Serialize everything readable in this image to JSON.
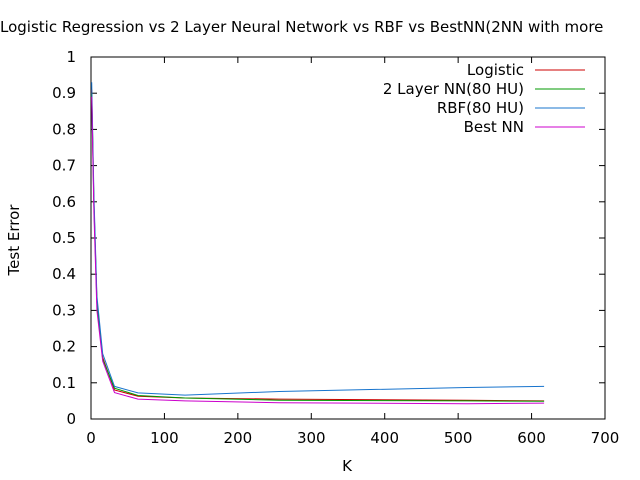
{
  "chart_data": {
    "type": "line",
    "title": "Logistic Regression vs 2 Layer Neural Network vs RBF vs BestNN(2NN with more",
    "xlabel": "K",
    "ylabel": "Test Error",
    "xlim": [
      0,
      700
    ],
    "ylim": [
      0,
      1
    ],
    "xticks": [
      0,
      100,
      200,
      300,
      400,
      500,
      600,
      700
    ],
    "xtick_labels": [
      "0",
      "100",
      "200",
      "300",
      "400",
      "500",
      "600",
      "700"
    ],
    "yticks": [
      0,
      0.1,
      0.2,
      0.3,
      0.4,
      0.5,
      0.6,
      0.7,
      0.8,
      0.9,
      1
    ],
    "ytick_labels": [
      "0",
      "0.1",
      "0.2",
      "0.3",
      "0.4",
      "0.5",
      "0.6",
      "0.7",
      "0.8",
      "0.9",
      "1"
    ],
    "grid": false,
    "legend_position": "top-right",
    "series": [
      {
        "name": "Logistic",
        "color": "#cc0000",
        "points": [
          [
            1,
            0.91
          ],
          [
            4,
            0.6
          ],
          [
            8,
            0.33
          ],
          [
            16,
            0.17
          ],
          [
            32,
            0.08
          ],
          [
            64,
            0.063
          ],
          [
            128,
            0.058
          ],
          [
            256,
            0.055
          ],
          [
            512,
            0.052
          ],
          [
            617,
            0.05
          ]
        ]
      },
      {
        "name": "2 Layer NN(80 HU)",
        "color": "#009900",
        "points": [
          [
            1,
            0.9
          ],
          [
            4,
            0.59
          ],
          [
            8,
            0.32
          ],
          [
            16,
            0.165
          ],
          [
            32,
            0.085
          ],
          [
            64,
            0.065
          ],
          [
            128,
            0.058
          ],
          [
            256,
            0.052
          ],
          [
            512,
            0.05
          ],
          [
            617,
            0.049
          ]
        ]
      },
      {
        "name": "RBF(80 HU)",
        "color": "#1874cd",
        "points": [
          [
            1,
            0.93
          ],
          [
            4,
            0.62
          ],
          [
            8,
            0.34
          ],
          [
            16,
            0.18
          ],
          [
            32,
            0.09
          ],
          [
            64,
            0.072
          ],
          [
            128,
            0.066
          ],
          [
            256,
            0.076
          ],
          [
            512,
            0.087
          ],
          [
            617,
            0.09
          ]
        ]
      },
      {
        "name": "Best NN",
        "color": "#cc00cc",
        "points": [
          [
            1,
            0.89
          ],
          [
            4,
            0.57
          ],
          [
            8,
            0.3
          ],
          [
            16,
            0.16
          ],
          [
            32,
            0.073
          ],
          [
            64,
            0.055
          ],
          [
            128,
            0.05
          ],
          [
            256,
            0.045
          ],
          [
            512,
            0.042
          ],
          [
            617,
            0.044
          ]
        ]
      }
    ]
  }
}
